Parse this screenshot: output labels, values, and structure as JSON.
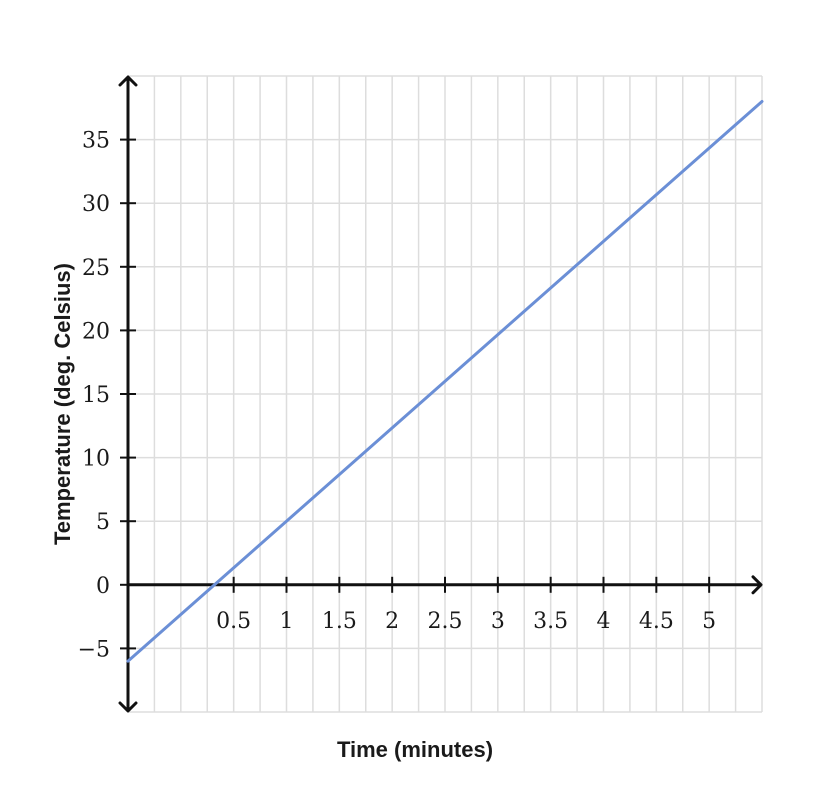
{
  "chart_data": {
    "type": "line",
    "title": "",
    "xlabel": "Time (minutes)",
    "ylabel": "Temperature (deg. Celsius)",
    "xlim": [
      -0.5,
      5.5
    ],
    "ylim": [
      -10,
      40
    ],
    "grid": true,
    "x_grid_step": 0.25,
    "y_grid_step": 5,
    "x_ticks": [
      0.5,
      1,
      1.5,
      2,
      2.5,
      3,
      3.5,
      4,
      4.5,
      5
    ],
    "x_tick_labels": [
      "0.5",
      "1",
      "1.5",
      "2",
      "2.5",
      "3",
      "3.5",
      "4",
      "4.5",
      "5"
    ],
    "y_ticks": [
      -5,
      0,
      5,
      10,
      15,
      20,
      25,
      30,
      35
    ],
    "y_tick_labels": [
      "−5",
      "0",
      "5",
      "10",
      "15",
      "20",
      "25",
      "30",
      "35"
    ],
    "series": [
      {
        "x": [
          -0.5,
          5.5
        ],
        "y": [
          -6,
          38
        ],
        "color": "#6b8fd6"
      }
    ]
  }
}
